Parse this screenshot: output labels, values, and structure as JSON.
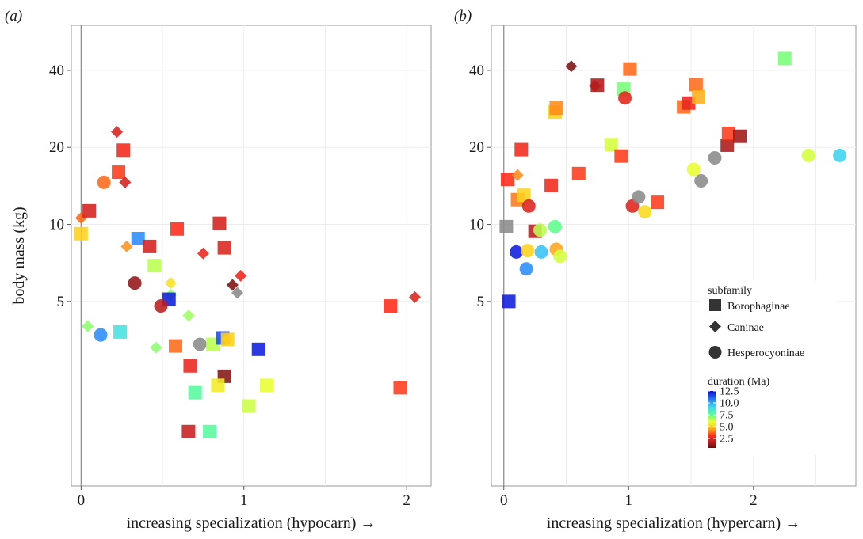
{
  "colorscale": {
    "stops": [
      {
        "v": 0.5,
        "c": "#6a0d0d"
      },
      {
        "v": 2.0,
        "c": "#c81e1e"
      },
      {
        "v": 3.0,
        "c": "#ff2a1a"
      },
      {
        "v": 4.0,
        "c": "#ff7a1a"
      },
      {
        "v": 5.0,
        "c": "#ffd21a"
      },
      {
        "v": 6.0,
        "c": "#e8ff30"
      },
      {
        "v": 7.5,
        "c": "#5cff8a"
      },
      {
        "v": 9.0,
        "c": "#40ddee"
      },
      {
        "v": 10.5,
        "c": "#2a8cff"
      },
      {
        "v": 12.5,
        "c": "#0a0ad8"
      }
    ],
    "grey": "#8a8a8a"
  },
  "legend": {
    "subfamily_title": "subfamily",
    "shapes": [
      {
        "shape": "square",
        "label": "Borophaginae"
      },
      {
        "shape": "diamond",
        "label": "Caninae"
      },
      {
        "shape": "circle",
        "label": "Hesperocyoninae"
      }
    ],
    "duration_title": "duration (Ma)",
    "duration_ticks": [
      "12.5",
      "10.0",
      "7.5",
      "5.0",
      "2.5"
    ],
    "duration_tick_values": [
      12.5,
      10.0,
      7.5,
      5.0,
      2.5
    ]
  },
  "chart_data": [
    {
      "type": "scatter",
      "panel_label": "(a)",
      "xlabel": "increasing specialization (hypocarn) →",
      "ylabel": "body mass (kg)",
      "x_ticks": [
        "0",
        "1",
        "2"
      ],
      "x_tick_values": [
        0,
        1,
        2
      ],
      "y_ticks": [
        "5",
        "10",
        "20",
        "40"
      ],
      "y_tick_values": [
        5,
        10,
        20,
        40
      ],
      "xlim": [
        -0.06,
        2.15
      ],
      "ylim": [
        0.95,
        60
      ],
      "y_scale": "log",
      "grid": true,
      "points": [
        {
          "x": 0.0,
          "y": 10.6,
          "shape": "diamond",
          "dur": 3.8
        },
        {
          "x": 0.05,
          "y": 11.3,
          "shape": "square",
          "dur": 2.2
        },
        {
          "x": 0.0,
          "y": 9.2,
          "shape": "square",
          "dur": 5.0
        },
        {
          "x": 0.22,
          "y": 23.0,
          "shape": "diamond",
          "dur": 2.2
        },
        {
          "x": 0.26,
          "y": 19.5,
          "shape": "square",
          "dur": 2.8
        },
        {
          "x": 0.23,
          "y": 16.0,
          "shape": "square",
          "dur": 3.2
        },
        {
          "x": 0.14,
          "y": 14.6,
          "shape": "circle",
          "dur": 3.8
        },
        {
          "x": 0.27,
          "y": 14.6,
          "shape": "diamond",
          "dur": 2.2
        },
        {
          "x": 0.35,
          "y": 8.8,
          "shape": "square",
          "dur": 10.5
        },
        {
          "x": 0.28,
          "y": 8.2,
          "shape": "diamond",
          "dur": 4.3
        },
        {
          "x": 0.42,
          "y": 8.2,
          "shape": "square",
          "dur": 2.2
        },
        {
          "x": 0.45,
          "y": 6.9,
          "shape": "square",
          "dur": 6.5
        },
        {
          "x": 0.59,
          "y": 9.6,
          "shape": "square",
          "dur": 3.0
        },
        {
          "x": 0.85,
          "y": 10.1,
          "shape": "square",
          "dur": 2.2
        },
        {
          "x": 0.88,
          "y": 8.1,
          "shape": "square",
          "dur": 2.4
        },
        {
          "x": 0.75,
          "y": 7.7,
          "shape": "diamond",
          "dur": 2.6
        },
        {
          "x": 0.98,
          "y": 6.3,
          "shape": "diamond",
          "dur": 2.6
        },
        {
          "x": 0.33,
          "y": 5.9,
          "shape": "circle",
          "dur": 1.2
        },
        {
          "x": 0.55,
          "y": 5.9,
          "shape": "diamond",
          "dur": 5.3
        },
        {
          "x": 0.93,
          "y": 5.8,
          "shape": "diamond",
          "dur": 0.8
        },
        {
          "x": 0.55,
          "y": 5.3,
          "shape": "diamond",
          "dur": 7.0
        },
        {
          "x": 0.54,
          "y": 5.1,
          "shape": "square",
          "dur": 12.2
        },
        {
          "x": 0.49,
          "y": 4.8,
          "shape": "circle",
          "dur": 1.8
        },
        {
          "x": 0.96,
          "y": 5.4,
          "shape": "diamond",
          "dur": 99
        },
        {
          "x": 0.66,
          "y": 4.4,
          "shape": "diamond",
          "dur": 6.8
        },
        {
          "x": 0.04,
          "y": 4.0,
          "shape": "diamond",
          "dur": 7.0
        },
        {
          "x": 0.12,
          "y": 3.7,
          "shape": "circle",
          "dur": 10.5
        },
        {
          "x": 0.24,
          "y": 3.8,
          "shape": "square",
          "dur": 8.8
        },
        {
          "x": 0.46,
          "y": 3.3,
          "shape": "diamond",
          "dur": 7.0
        },
        {
          "x": 0.58,
          "y": 3.35,
          "shape": "square",
          "dur": 3.8
        },
        {
          "x": 0.73,
          "y": 3.4,
          "shape": "circle",
          "dur": 99
        },
        {
          "x": 0.81,
          "y": 3.4,
          "shape": "square",
          "dur": 6.5
        },
        {
          "x": 0.87,
          "y": 3.6,
          "shape": "square",
          "dur": 11.5
        },
        {
          "x": 0.9,
          "y": 3.55,
          "shape": "diamond",
          "dur": 4.7
        },
        {
          "x": 0.9,
          "y": 3.55,
          "shape": "square",
          "dur": 5.0
        },
        {
          "x": 1.09,
          "y": 3.25,
          "shape": "square",
          "dur": 12.2
        },
        {
          "x": 0.67,
          "y": 2.8,
          "shape": "square",
          "dur": 2.6
        },
        {
          "x": 0.88,
          "y": 2.55,
          "shape": "square",
          "dur": 1.0
        },
        {
          "x": 0.84,
          "y": 2.35,
          "shape": "square",
          "dur": 5.6
        },
        {
          "x": 1.14,
          "y": 2.35,
          "shape": "square",
          "dur": 6.0
        },
        {
          "x": 0.7,
          "y": 2.2,
          "shape": "square",
          "dur": 7.8
        },
        {
          "x": 1.03,
          "y": 1.95,
          "shape": "square",
          "dur": 6.3
        },
        {
          "x": 0.66,
          "y": 1.55,
          "shape": "square",
          "dur": 2.0
        },
        {
          "x": 0.79,
          "y": 1.55,
          "shape": "square",
          "dur": 7.8
        },
        {
          "x": 1.9,
          "y": 4.8,
          "shape": "square",
          "dur": 3.0
        },
        {
          "x": 2.05,
          "y": 5.2,
          "shape": "diamond",
          "dur": 2.4
        },
        {
          "x": 1.96,
          "y": 2.3,
          "shape": "square",
          "dur": 3.2
        }
      ]
    },
    {
      "type": "scatter",
      "panel_label": "(b)",
      "xlabel": "increasing specialization (hypercarn) →",
      "ylabel": "",
      "x_ticks": [
        "0",
        "1",
        "2"
      ],
      "x_tick_values": [
        0,
        1,
        2
      ],
      "y_ticks": [
        "5",
        "10",
        "20",
        "40"
      ],
      "y_tick_values": [
        5,
        10,
        20,
        40
      ],
      "xlim": [
        -0.1,
        2.82
      ],
      "ylim": [
        0.95,
        60
      ],
      "y_scale": "log",
      "grid": true,
      "points": [
        {
          "x": 0.03,
          "y": 15.0,
          "shape": "square",
          "dur": 3.0
        },
        {
          "x": 0.11,
          "y": 15.6,
          "shape": "diamond",
          "dur": 4.2
        },
        {
          "x": 0.14,
          "y": 19.6,
          "shape": "square",
          "dur": 2.8
        },
        {
          "x": 0.11,
          "y": 12.5,
          "shape": "square",
          "dur": 4.0
        },
        {
          "x": 0.16,
          "y": 13.0,
          "shape": "square",
          "dur": 5.0
        },
        {
          "x": 0.2,
          "y": 11.8,
          "shape": "circle",
          "dur": 2.4
        },
        {
          "x": 0.02,
          "y": 9.8,
          "shape": "square",
          "dur": 99
        },
        {
          "x": 0.25,
          "y": 9.4,
          "shape": "square",
          "dur": 1.8
        },
        {
          "x": 0.29,
          "y": 9.5,
          "shape": "circle",
          "dur": 6.5
        },
        {
          "x": 0.41,
          "y": 9.8,
          "shape": "circle",
          "dur": 7.5
        },
        {
          "x": 0.1,
          "y": 7.8,
          "shape": "circle",
          "dur": 12.2
        },
        {
          "x": 0.19,
          "y": 7.9,
          "shape": "circle",
          "dur": 5.0
        },
        {
          "x": 0.3,
          "y": 7.8,
          "shape": "circle",
          "dur": 9.5
        },
        {
          "x": 0.42,
          "y": 8.0,
          "shape": "circle",
          "dur": 4.5
        },
        {
          "x": 0.45,
          "y": 7.5,
          "shape": "circle",
          "dur": 6.2
        },
        {
          "x": 0.18,
          "y": 6.7,
          "shape": "circle",
          "dur": 10.5
        },
        {
          "x": 0.04,
          "y": 5.0,
          "shape": "square",
          "dur": 12.2
        },
        {
          "x": 0.38,
          "y": 14.2,
          "shape": "square",
          "dur": 2.8
        },
        {
          "x": 0.6,
          "y": 15.8,
          "shape": "square",
          "dur": 3.2
        },
        {
          "x": 0.41,
          "y": 27.5,
          "shape": "square",
          "dur": 5.0
        },
        {
          "x": 0.42,
          "y": 28.5,
          "shape": "square",
          "dur": 4.2
        },
        {
          "x": 0.54,
          "y": 41.5,
          "shape": "diamond",
          "dur": 0.8
        },
        {
          "x": 0.73,
          "y": 34.8,
          "shape": "diamond",
          "dur": 2.4
        },
        {
          "x": 0.75,
          "y": 35.0,
          "shape": "square",
          "dur": 1.6
        },
        {
          "x": 0.96,
          "y": 33.8,
          "shape": "square",
          "dur": 7.2
        },
        {
          "x": 0.97,
          "y": 31.2,
          "shape": "circle",
          "dur": 2.5
        },
        {
          "x": 1.01,
          "y": 40.5,
          "shape": "square",
          "dur": 3.8
        },
        {
          "x": 0.86,
          "y": 20.5,
          "shape": "square",
          "dur": 6.2
        },
        {
          "x": 0.94,
          "y": 18.5,
          "shape": "square",
          "dur": 3.2
        },
        {
          "x": 1.03,
          "y": 11.8,
          "shape": "circle",
          "dur": 2.4
        },
        {
          "x": 1.08,
          "y": 12.8,
          "shape": "circle",
          "dur": 99
        },
        {
          "x": 1.13,
          "y": 11.2,
          "shape": "circle",
          "dur": 5.2
        },
        {
          "x": 1.23,
          "y": 12.2,
          "shape": "square",
          "dur": 3.2
        },
        {
          "x": 1.44,
          "y": 28.8,
          "shape": "square",
          "dur": 3.8
        },
        {
          "x": 1.48,
          "y": 29.8,
          "shape": "square",
          "dur": 2.6
        },
        {
          "x": 1.54,
          "y": 35.2,
          "shape": "square",
          "dur": 3.8
        },
        {
          "x": 1.56,
          "y": 31.5,
          "shape": "square",
          "dur": 4.6
        },
        {
          "x": 1.52,
          "y": 16.4,
          "shape": "circle",
          "dur": 6.0
        },
        {
          "x": 1.58,
          "y": 14.8,
          "shape": "circle",
          "dur": 99
        },
        {
          "x": 1.69,
          "y": 18.2,
          "shape": "circle",
          "dur": 99
        },
        {
          "x": 1.79,
          "y": 20.4,
          "shape": "square",
          "dur": 1.6
        },
        {
          "x": 1.8,
          "y": 22.7,
          "shape": "square",
          "dur": 3.2
        },
        {
          "x": 1.89,
          "y": 22.1,
          "shape": "square",
          "dur": 1.4
        },
        {
          "x": 2.25,
          "y": 44.5,
          "shape": "square",
          "dur": 7.2
        },
        {
          "x": 2.44,
          "y": 18.6,
          "shape": "circle",
          "dur": 6.2
        },
        {
          "x": 2.69,
          "y": 18.6,
          "shape": "circle",
          "dur": 9.2
        }
      ]
    }
  ]
}
